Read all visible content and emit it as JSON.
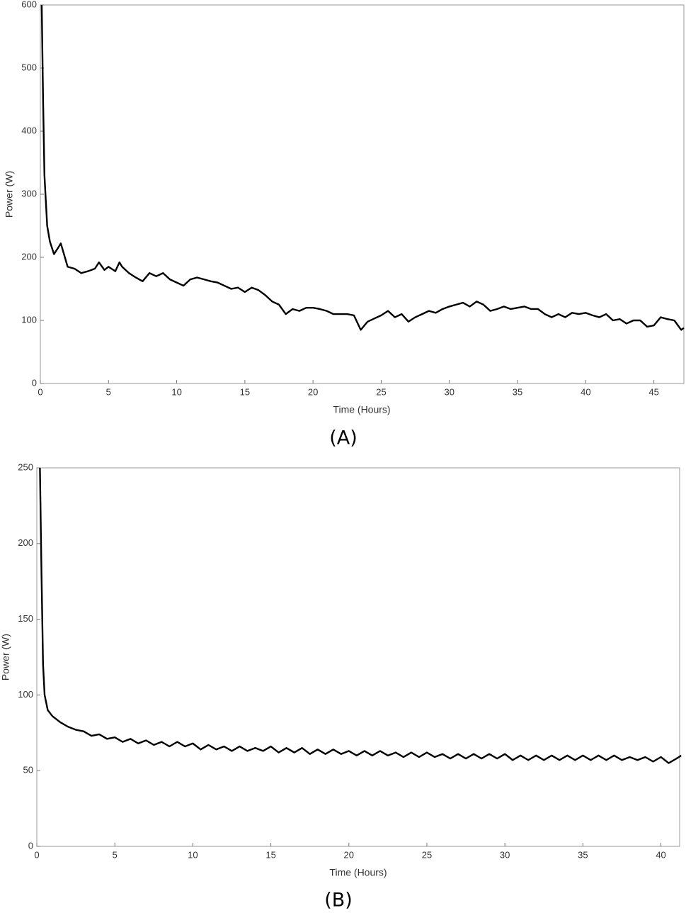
{
  "chart_data": [
    {
      "type": "line",
      "caption": "(A)",
      "xlabel": "Time (Hours)",
      "ylabel": "Power (W)",
      "color": "#000000",
      "xlim": [
        0,
        47.2
      ],
      "ylim": [
        0,
        600
      ],
      "xticks": [
        0,
        5,
        10,
        15,
        20,
        25,
        30,
        35,
        40,
        45
      ],
      "yticks": [
        0,
        100,
        200,
        300,
        400,
        500,
        600
      ],
      "x": [
        0.1,
        0.2,
        0.3,
        0.5,
        0.7,
        1.0,
        1.3,
        1.5,
        1.8,
        2,
        2.5,
        3,
        3.5,
        4,
        4.3,
        4.7,
        5,
        5.5,
        5.8,
        6,
        6.5,
        7,
        7.5,
        8,
        8.5,
        9,
        9.5,
        10,
        10.5,
        11,
        11.5,
        12,
        12.5,
        13,
        13.5,
        14,
        14.5,
        15,
        15.5,
        16,
        16.5,
        17,
        17.5,
        18,
        18.5,
        19,
        19.5,
        20,
        20.5,
        21,
        21.5,
        22,
        22.5,
        23,
        23.5,
        24,
        24.5,
        25,
        25.5,
        26,
        26.5,
        27,
        27.5,
        28,
        28.5,
        29,
        29.5,
        30,
        30.5,
        31,
        31.5,
        32,
        32.5,
        33,
        33.5,
        34,
        34.5,
        35,
        35.5,
        36,
        36.5,
        37,
        37.5,
        38,
        38.5,
        39,
        39.5,
        40,
        40.5,
        41,
        41.5,
        42,
        42.5,
        43,
        43.5,
        44,
        44.5,
        45,
        45.5,
        46,
        46.5,
        47,
        47.2
      ],
      "values": [
        600,
        450,
        330,
        250,
        225,
        205,
        215,
        222,
        200,
        185,
        182,
        175,
        178,
        182,
        192,
        180,
        185,
        178,
        192,
        185,
        175,
        168,
        162,
        175,
        170,
        175,
        165,
        160,
        155,
        165,
        168,
        165,
        162,
        160,
        155,
        150,
        152,
        145,
        152,
        148,
        140,
        130,
        125,
        110,
        118,
        115,
        120,
        120,
        118,
        115,
        110,
        110,
        110,
        108,
        85,
        98,
        103,
        108,
        115,
        105,
        110,
        98,
        105,
        110,
        115,
        112,
        118,
        122,
        125,
        128,
        122,
        130,
        125,
        115,
        118,
        122,
        118,
        120,
        122,
        118,
        118,
        110,
        105,
        110,
        105,
        112,
        110,
        112,
        108,
        105,
        110,
        100,
        102,
        95,
        100,
        100,
        90,
        92,
        105,
        102,
        100,
        85,
        88
      ]
    },
    {
      "type": "line",
      "caption": "(B)",
      "xlabel": "Time (Hours)",
      "ylabel": "Power (W)",
      "color": "#000000",
      "xlim": [
        0,
        41.2
      ],
      "ylim": [
        0,
        250
      ],
      "xticks": [
        0,
        5,
        10,
        15,
        20,
        25,
        30,
        35,
        40
      ],
      "yticks": [
        0,
        50,
        100,
        150,
        200,
        250
      ],
      "x": [
        0.2,
        0.3,
        0.4,
        0.5,
        0.7,
        1,
        1.5,
        2,
        2.5,
        3,
        3.5,
        4,
        4.5,
        5,
        5.5,
        6,
        6.5,
        7,
        7.5,
        8,
        8.5,
        9,
        9.5,
        10,
        10.5,
        11,
        11.5,
        12,
        12.5,
        13,
        13.5,
        14,
        14.5,
        15,
        15.5,
        16,
        16.5,
        17,
        17.5,
        18,
        18.5,
        19,
        19.5,
        20,
        20.5,
        21,
        21.5,
        22,
        22.5,
        23,
        23.5,
        24,
        24.5,
        25,
        25.5,
        26,
        26.5,
        27,
        27.5,
        28,
        28.5,
        29,
        29.5,
        30,
        30.5,
        31,
        31.5,
        32,
        32.5,
        33,
        33.5,
        34,
        34.5,
        35,
        35.5,
        36,
        36.5,
        37,
        37.5,
        38,
        38.5,
        39,
        39.5,
        40,
        40.5,
        41,
        41.3
      ],
      "values": [
        250,
        180,
        120,
        100,
        90,
        86,
        82,
        79,
        77,
        76,
        73,
        74,
        71,
        72,
        69,
        71,
        68,
        70,
        67,
        69,
        66,
        69,
        66,
        68,
        64,
        67,
        64,
        66,
        63,
        66,
        63,
        65,
        63,
        66,
        62,
        65,
        62,
        65,
        61,
        64,
        61,
        64,
        61,
        63,
        60,
        63,
        60,
        63,
        60,
        62,
        59,
        62,
        59,
        62,
        59,
        61,
        58,
        61,
        58,
        61,
        58,
        61,
        58,
        61,
        57,
        60,
        57,
        60,
        57,
        60,
        57,
        60,
        57,
        60,
        57,
        60,
        57,
        60,
        57,
        59,
        57,
        59,
        56,
        59,
        55,
        58,
        60
      ]
    }
  ]
}
